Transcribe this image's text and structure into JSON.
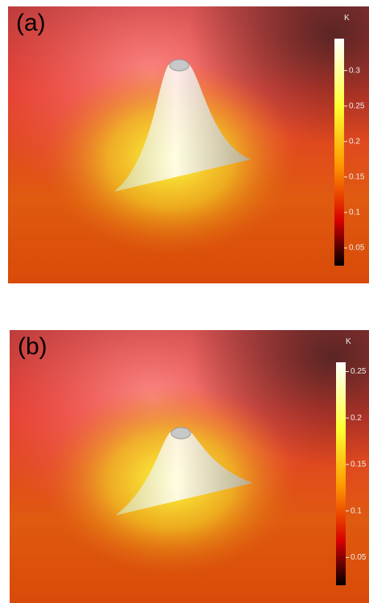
{
  "panels": [
    {
      "label": "(a)",
      "unit": "K",
      "colorbar": {
        "lim": [
          0.025,
          0.345
        ],
        "ticks": [
          0.05,
          0.1,
          0.15,
          0.2,
          0.25,
          0.3
        ]
      }
    },
    {
      "label": "(b)",
      "unit": "K",
      "colorbar": {
        "lim": [
          0.02,
          0.26
        ],
        "ticks": [
          0.05,
          0.1,
          0.15,
          0.2,
          0.25
        ]
      }
    }
  ]
}
